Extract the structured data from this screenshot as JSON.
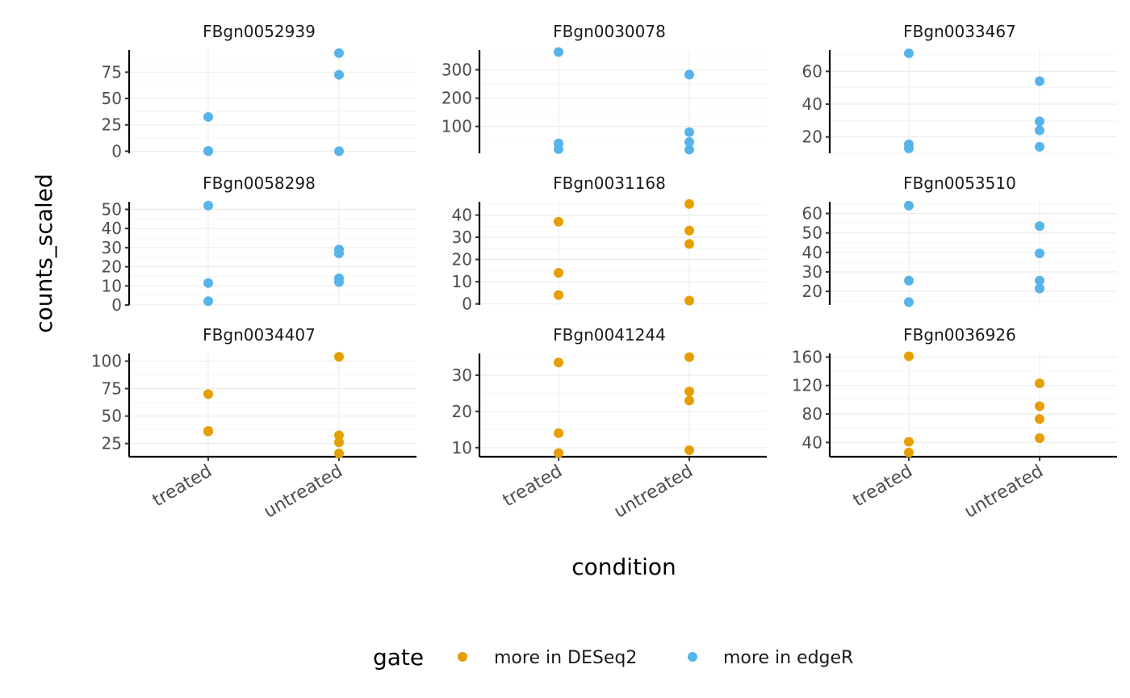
{
  "chart_data": {
    "type": "scatter",
    "xlabel": "condition",
    "ylabel": "counts_scaled",
    "categories": [
      "treated",
      "untreated"
    ],
    "legend": {
      "title": "gate",
      "position": "bottom",
      "entries": [
        {
          "name": "more in DESeq2",
          "color": "#E69F00"
        },
        {
          "name": "more in edgeR",
          "color": "#56B4E9"
        }
      ]
    },
    "panels": [
      {
        "title": "FBgn0052939",
        "gate": "more in edgeR",
        "ylim": [
          -2,
          96
        ],
        "yticks": [
          0,
          25,
          50,
          75
        ],
        "treated": [
          0,
          0.3,
          32.5
        ],
        "untreated": [
          0,
          72.5,
          93
        ]
      },
      {
        "title": "FBgn0030078",
        "gate": "more in edgeR",
        "ylim": [
          5,
          370
        ],
        "yticks": [
          100,
          200,
          300
        ],
        "treated": [
          20,
          40,
          363
        ],
        "untreated": [
          18,
          45,
          80,
          283
        ]
      },
      {
        "title": "FBgn0033467",
        "gate": "more in edgeR",
        "ylim": [
          10,
          73
        ],
        "yticks": [
          20,
          40,
          60
        ],
        "treated": [
          13,
          15.5,
          71
        ],
        "untreated": [
          14,
          24,
          29.5,
          54
        ]
      },
      {
        "title": "FBgn0058298",
        "gate": "more in edgeR",
        "ylim": [
          0,
          54
        ],
        "yticks": [
          0,
          10,
          20,
          30,
          40,
          50
        ],
        "treated": [
          2,
          11.5,
          52
        ],
        "untreated": [
          12,
          14,
          27,
          29
        ]
      },
      {
        "title": "FBgn0031168",
        "gate": "more in DESeq2",
        "ylim": [
          -0.5,
          46
        ],
        "yticks": [
          0,
          10,
          20,
          30,
          40
        ],
        "treated": [
          4,
          14,
          37
        ],
        "untreated": [
          1.5,
          27,
          33,
          45
        ]
      },
      {
        "title": "FBgn0053510",
        "gate": "more in edgeR",
        "ylim": [
          13,
          66
        ],
        "yticks": [
          20,
          30,
          40,
          50,
          60
        ],
        "treated": [
          14.5,
          25.5,
          64
        ],
        "untreated": [
          21.5,
          25.5,
          39.5,
          53.5
        ]
      },
      {
        "title": "FBgn0034407",
        "gate": "more in DESeq2",
        "ylim": [
          13,
          107
        ],
        "yticks": [
          25,
          50,
          75,
          100
        ],
        "treated": [
          36,
          36.5,
          70
        ],
        "untreated": [
          16,
          26,
          32.5,
          104
        ]
      },
      {
        "title": "FBgn0041244",
        "gate": "more in DESeq2",
        "ylim": [
          7.5,
          36
        ],
        "yticks": [
          10,
          20,
          30
        ],
        "treated": [
          8.5,
          14,
          33.5
        ],
        "untreated": [
          9.3,
          23,
          25.5,
          35
        ]
      },
      {
        "title": "FBgn0036926",
        "gate": "more in DESeq2",
        "ylim": [
          20,
          165
        ],
        "yticks": [
          40,
          80,
          120,
          160
        ],
        "treated": [
          26,
          41,
          161
        ],
        "untreated": [
          46,
          73,
          91,
          123
        ]
      }
    ]
  }
}
